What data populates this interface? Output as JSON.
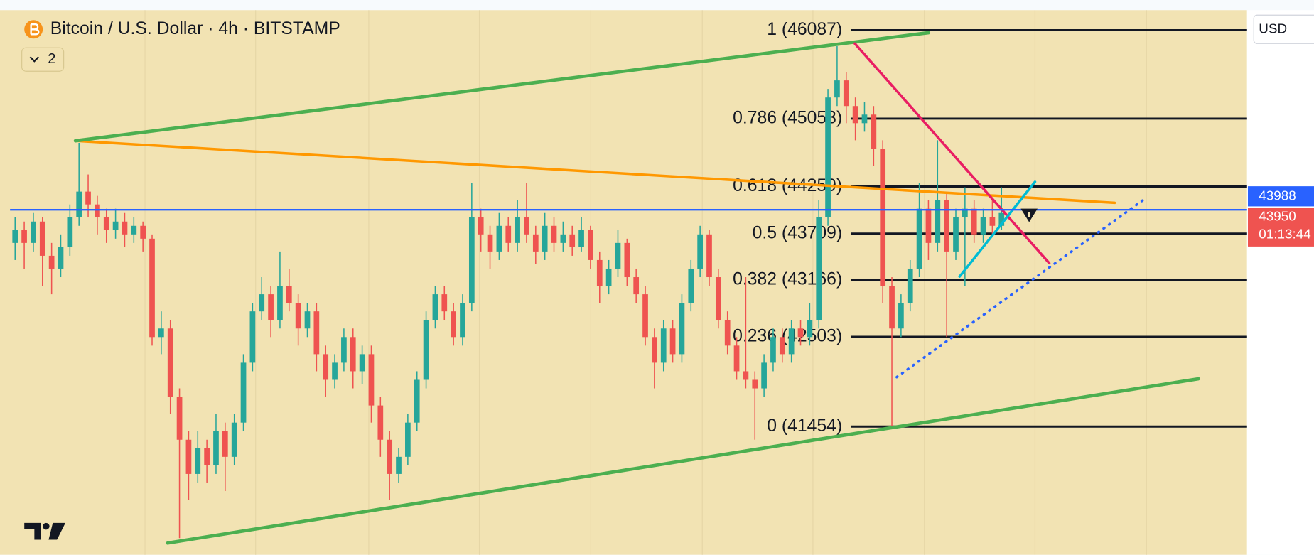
{
  "chart_data": {
    "type": "candlestick",
    "title": "Bitcoin / U.S. Dollar · 4h · BITSTAMP",
    "indicator_badge": "2",
    "currency": "USD",
    "up_color": "#26a69a",
    "down_color": "#ef5350",
    "ylim": [
      39955,
      46322
    ],
    "yticks": [
      40400,
      40900,
      41400,
      42000,
      42600,
      43100,
      44700,
      45500
    ],
    "grid": true,
    "fib_levels": [
      {
        "value": 46087,
        "label": "1 (46087)"
      },
      {
        "value": 45053,
        "label": "0.786 (45053)"
      },
      {
        "value": 44259,
        "label": "0.618 (44259)"
      },
      {
        "value": 43709,
        "label": "0.5 (43709)"
      },
      {
        "value": 43166,
        "label": "0.382 (43166)"
      },
      {
        "value": 42503,
        "label": "0.236 (42503)"
      },
      {
        "value": 41454,
        "label": "0 (41454)"
      }
    ],
    "price_line": 43988,
    "last_price": 43950,
    "countdown": "01:13:44",
    "candles": [
      [
        43600,
        43900,
        43400,
        43750
      ],
      [
        43750,
        43850,
        43300,
        43600
      ],
      [
        43600,
        43950,
        43500,
        43850
      ],
      [
        43850,
        43900,
        43100,
        43450
      ],
      [
        43450,
        43600,
        43000,
        43300
      ],
      [
        43300,
        43700,
        43200,
        43550
      ],
      [
        43550,
        44050,
        43450,
        43900
      ],
      [
        43900,
        44770,
        43800,
        44200
      ],
      [
        44200,
        44400,
        43900,
        44050
      ],
      [
        44050,
        44150,
        43700,
        43900
      ],
      [
        43900,
        44000,
        43600,
        43750
      ],
      [
        43750,
        44000,
        43650,
        43850
      ],
      [
        43850,
        43950,
        43550,
        43700
      ],
      [
        43700,
        43900,
        43600,
        43800
      ],
      [
        43800,
        43850,
        43500,
        43650
      ],
      [
        43650,
        43700,
        42400,
        42500
      ],
      [
        42500,
        42800,
        42300,
        42600
      ],
      [
        42600,
        42700,
        41600,
        41800
      ],
      [
        41800,
        41900,
        40150,
        41300
      ],
      [
        41300,
        41400,
        40600,
        40900
      ],
      [
        40900,
        41400,
        40800,
        41200
      ],
      [
        41200,
        41300,
        40800,
        41000
      ],
      [
        41000,
        41600,
        40900,
        41400
      ],
      [
        41400,
        41500,
        40700,
        41100
      ],
      [
        41100,
        41600,
        41000,
        41500
      ],
      [
        41500,
        42300,
        41400,
        42200
      ],
      [
        42200,
        42900,
        42100,
        42800
      ],
      [
        42800,
        43200,
        42700,
        43000
      ],
      [
        43000,
        43100,
        42500,
        42700
      ],
      [
        42700,
        43500,
        42600,
        43100
      ],
      [
        43100,
        43300,
        42800,
        42900
      ],
      [
        42900,
        43000,
        42400,
        42600
      ],
      [
        42600,
        42900,
        42500,
        42800
      ],
      [
        42800,
        42900,
        42100,
        42300
      ],
      [
        42300,
        42400,
        41800,
        42000
      ],
      [
        42000,
        42300,
        41900,
        42200
      ],
      [
        42200,
        42600,
        42100,
        42500
      ],
      [
        42500,
        42600,
        41900,
        42100
      ],
      [
        42100,
        42400,
        41950,
        42300
      ],
      [
        42300,
        42400,
        41500,
        41700
      ],
      [
        41700,
        41800,
        41100,
        41300
      ],
      [
        41300,
        41400,
        40600,
        40900
      ],
      [
        40900,
        41200,
        40800,
        41100
      ],
      [
        41100,
        41600,
        41000,
        41500
      ],
      [
        41500,
        42100,
        41400,
        42000
      ],
      [
        42000,
        42800,
        41900,
        42700
      ],
      [
        42700,
        43100,
        42600,
        43000
      ],
      [
        43000,
        43100,
        42700,
        42800
      ],
      [
        42800,
        42900,
        42400,
        42500
      ],
      [
        42500,
        43000,
        42400,
        42900
      ],
      [
        42900,
        44300,
        42800,
        43900
      ],
      [
        43900,
        44000,
        43500,
        43700
      ],
      [
        43700,
        43800,
        43300,
        43500
      ],
      [
        43500,
        43950,
        43400,
        43800
      ],
      [
        43800,
        43900,
        43500,
        43600
      ],
      [
        43600,
        44100,
        43500,
        43900
      ],
      [
        43900,
        44300,
        43600,
        43700
      ],
      [
        43700,
        43800,
        43350,
        43500
      ],
      [
        43500,
        43950,
        43400,
        43800
      ],
      [
        43800,
        43900,
        43500,
        43600
      ],
      [
        43600,
        43850,
        43500,
        43700
      ],
      [
        43700,
        43800,
        43450,
        43550
      ],
      [
        43550,
        43900,
        43500,
        43750
      ],
      [
        43750,
        43800,
        43300,
        43400
      ],
      [
        43400,
        43500,
        42900,
        43100
      ],
      [
        43100,
        43400,
        43000,
        43300
      ],
      [
        43300,
        43750,
        43200,
        43600
      ],
      [
        43600,
        43650,
        43100,
        43200
      ],
      [
        43200,
        43300,
        42900,
        43000
      ],
      [
        43000,
        43100,
        42400,
        42500
      ],
      [
        42500,
        42600,
        41900,
        42200
      ],
      [
        42200,
        42700,
        42100,
        42600
      ],
      [
        42600,
        42700,
        42200,
        42300
      ],
      [
        42300,
        43000,
        42200,
        42900
      ],
      [
        42900,
        43400,
        42800,
        43300
      ],
      [
        43300,
        43800,
        43200,
        43700
      ],
      [
        43700,
        43750,
        43100,
        43200
      ],
      [
        43200,
        43300,
        42600,
        42700
      ],
      [
        42700,
        42800,
        42300,
        42400
      ],
      [
        42400,
        42500,
        42000,
        42100
      ],
      [
        42100,
        43200,
        41900,
        42000
      ],
      [
        42000,
        42100,
        41300,
        41900
      ],
      [
        41900,
        42300,
        41800,
        42200
      ],
      [
        42200,
        42600,
        42100,
        42500
      ],
      [
        42500,
        42600,
        42200,
        42300
      ],
      [
        42300,
        42700,
        42200,
        42600
      ],
      [
        42600,
        42700,
        42400,
        42500
      ],
      [
        42500,
        42900,
        42400,
        42700
      ],
      [
        42700,
        44100,
        42600,
        43900
      ],
      [
        43900,
        45400,
        43800,
        45300
      ],
      [
        45300,
        45900,
        45200,
        45500
      ],
      [
        45500,
        45600,
        45000,
        45200
      ],
      [
        45200,
        45300,
        44800,
        45000
      ],
      [
        45000,
        45250,
        44900,
        45100
      ],
      [
        45100,
        45200,
        44500,
        44700
      ],
      [
        44700,
        44800,
        42900,
        43100
      ],
      [
        43100,
        43200,
        41450,
        42600
      ],
      [
        42600,
        43000,
        42500,
        42900
      ],
      [
        42900,
        43400,
        42800,
        43300
      ],
      [
        43300,
        44300,
        43200,
        44000
      ],
      [
        44000,
        44100,
        43400,
        43600
      ],
      [
        43600,
        44800,
        43500,
        44100
      ],
      [
        44100,
        44200,
        42500,
        43500
      ],
      [
        43500,
        44000,
        43400,
        43900
      ],
      [
        43900,
        44250,
        43100,
        44000
      ],
      [
        44000,
        44100,
        43600,
        43700
      ],
      [
        43700,
        44000,
        43600,
        43900
      ],
      [
        43900,
        44100,
        43700,
        43800
      ],
      [
        43800,
        44250,
        43750,
        43950
      ]
    ]
  }
}
